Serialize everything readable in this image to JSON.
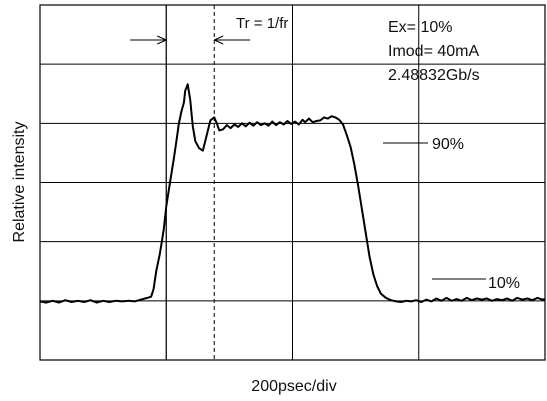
{
  "chart_data": {
    "type": "line",
    "xlabel": "200psec/div",
    "ylabel": "Relative  intensity",
    "grid": true,
    "x_divisions": 4,
    "y_divisions": 6,
    "xlim": [
      0,
      4
    ],
    "ylim": [
      0,
      6
    ],
    "series": [
      {
        "points": [
          [
            0.0,
            0.99
          ],
          [
            0.05,
            0.97
          ],
          [
            0.1,
            1.0
          ],
          [
            0.15,
            0.97
          ],
          [
            0.2,
            1.01
          ],
          [
            0.25,
            0.98
          ],
          [
            0.3,
            1.0
          ],
          [
            0.35,
            0.98
          ],
          [
            0.4,
            1.01
          ],
          [
            0.45,
            0.97
          ],
          [
            0.5,
            1.0
          ],
          [
            0.55,
            0.98
          ],
          [
            0.6,
            1.0
          ],
          [
            0.65,
            0.99
          ],
          [
            0.7,
            1.0
          ],
          [
            0.75,
            0.99
          ],
          [
            0.8,
            1.02
          ],
          [
            0.85,
            1.05
          ],
          [
            0.88,
            1.07
          ],
          [
            0.9,
            1.2
          ],
          [
            0.92,
            1.5
          ],
          [
            0.95,
            1.8
          ],
          [
            0.98,
            2.2
          ],
          [
            1.0,
            2.6
          ],
          [
            1.03,
            3.0
          ],
          [
            1.06,
            3.4
          ],
          [
            1.08,
            3.7
          ],
          [
            1.1,
            4.0
          ],
          [
            1.12,
            4.2
          ],
          [
            1.14,
            4.35
          ],
          [
            1.15,
            4.55
          ],
          [
            1.17,
            4.66
          ],
          [
            1.19,
            4.4
          ],
          [
            1.21,
            3.95
          ],
          [
            1.23,
            3.7
          ],
          [
            1.26,
            3.58
          ],
          [
            1.29,
            3.54
          ],
          [
            1.32,
            3.8
          ],
          [
            1.35,
            4.05
          ],
          [
            1.38,
            4.1
          ],
          [
            1.4,
            4.0
          ],
          [
            1.42,
            3.88
          ],
          [
            1.45,
            3.9
          ],
          [
            1.48,
            3.97
          ],
          [
            1.51,
            3.92
          ],
          [
            1.54,
            3.98
          ],
          [
            1.57,
            3.94
          ],
          [
            1.6,
            4.0
          ],
          [
            1.63,
            3.95
          ],
          [
            1.66,
            4.01
          ],
          [
            1.69,
            3.96
          ],
          [
            1.72,
            4.02
          ],
          [
            1.75,
            3.97
          ],
          [
            1.78,
            4.0
          ],
          [
            1.81,
            3.96
          ],
          [
            1.84,
            4.03
          ],
          [
            1.87,
            3.97
          ],
          [
            1.9,
            4.02
          ],
          [
            1.93,
            3.98
          ],
          [
            1.96,
            4.04
          ],
          [
            1.99,
            3.99
          ],
          [
            2.02,
            4.03
          ],
          [
            2.05,
            3.98
          ],
          [
            2.08,
            4.06
          ],
          [
            2.1,
            4.02
          ],
          [
            2.13,
            4.08
          ],
          [
            2.16,
            4.02
          ],
          [
            2.19,
            4.04
          ],
          [
            2.22,
            4.05
          ],
          [
            2.25,
            4.1
          ],
          [
            2.28,
            4.08
          ],
          [
            2.31,
            4.12
          ],
          [
            2.34,
            4.1
          ],
          [
            2.37,
            4.06
          ],
          [
            2.4,
            3.98
          ],
          [
            2.43,
            3.8
          ],
          [
            2.46,
            3.6
          ],
          [
            2.49,
            3.3
          ],
          [
            2.52,
            2.95
          ],
          [
            2.55,
            2.55
          ],
          [
            2.58,
            2.15
          ],
          [
            2.61,
            1.75
          ],
          [
            2.64,
            1.45
          ],
          [
            2.67,
            1.25
          ],
          [
            2.7,
            1.12
          ],
          [
            2.74,
            1.05
          ],
          [
            2.78,
            1.01
          ],
          [
            2.82,
            0.99
          ],
          [
            2.86,
            0.98
          ],
          [
            2.9,
            1.0
          ],
          [
            2.94,
            0.99
          ],
          [
            2.98,
            1.01
          ],
          [
            3.02,
            0.98
          ],
          [
            3.06,
            1.02
          ],
          [
            3.1,
            0.99
          ],
          [
            3.14,
            1.04
          ],
          [
            3.18,
            1.0
          ],
          [
            3.22,
            1.05
          ],
          [
            3.26,
            1.0
          ],
          [
            3.3,
            1.03
          ],
          [
            3.34,
            1.0
          ],
          [
            3.38,
            1.05
          ],
          [
            3.42,
            1.01
          ],
          [
            3.46,
            1.04
          ],
          [
            3.5,
            1.02
          ],
          [
            3.54,
            1.04
          ],
          [
            3.58,
            1.0
          ],
          [
            3.62,
            1.03
          ],
          [
            3.66,
            1.01
          ],
          [
            3.7,
            1.04
          ],
          [
            3.74,
            1.0
          ],
          [
            3.78,
            1.05
          ],
          [
            3.82,
            1.02
          ],
          [
            3.86,
            1.04
          ],
          [
            3.9,
            1.01
          ],
          [
            3.94,
            1.05
          ],
          [
            3.98,
            1.02
          ],
          [
            4.0,
            1.03
          ]
        ]
      }
    ],
    "markers": [
      {
        "name": "first-peak",
        "x": 1.0,
        "style": "solid"
      },
      {
        "name": "second-peak",
        "x": 1.38,
        "style": "dashed"
      }
    ],
    "annotations": {
      "period": "Tr = 1/fr",
      "extinction": "Ex= 10%",
      "imod": "Imod= 40mA",
      "bitrate": "2.48832Gb/s",
      "level_90": "90%",
      "level_10": "10%"
    }
  }
}
